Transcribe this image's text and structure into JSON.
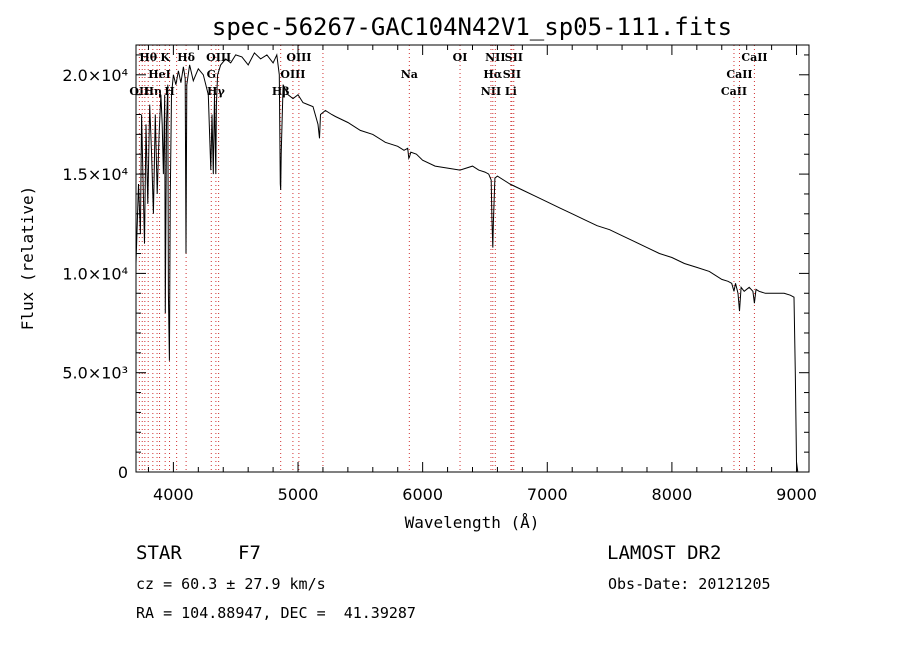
{
  "chart_data": {
    "type": "line",
    "title": "spec-56267-GAC104N42V1_sp05-111.fits",
    "xlabel": "Wavelength (Å)",
    "ylabel": "Flux (relative)",
    "xlim": [
      3700,
      9100
    ],
    "ylim": [
      0,
      21500
    ],
    "xticks": [
      {
        "value": 4000,
        "label": "4000"
      },
      {
        "value": 5000,
        "label": "5000"
      },
      {
        "value": 6000,
        "label": "6000"
      },
      {
        "value": 7000,
        "label": "7000"
      },
      {
        "value": 8000,
        "label": "8000"
      },
      {
        "value": 9000,
        "label": "9000"
      }
    ],
    "yticks": [
      {
        "value": 0,
        "label": "0"
      },
      {
        "value": 5000,
        "label": "5.0×10³"
      },
      {
        "value": 10000,
        "label": "1.0×10⁴"
      },
      {
        "value": 15000,
        "label": "1.5×10⁴"
      },
      {
        "value": 20000,
        "label": "2.0×10⁴"
      }
    ],
    "grid": false,
    "series": [
      {
        "x": [
          3700,
          3720,
          3735,
          3745,
          3755,
          3768,
          3780,
          3795,
          3810,
          3825,
          3840,
          3855,
          3870,
          3885,
          3900,
          3910,
          3920,
          3930,
          3935,
          3945,
          3955,
          3960,
          3968,
          3975,
          3985,
          4000,
          4020,
          4040,
          4060,
          4080,
          4095,
          4101,
          4108,
          4130,
          4160,
          4200,
          4240,
          4280,
          4300,
          4310,
          4320,
          4330,
          4340,
          4345,
          4355,
          4380,
          4420,
          4460,
          4500,
          4550,
          4600,
          4650,
          4700,
          4750,
          4800,
          4830,
          4850,
          4858,
          4861,
          4865,
          4880,
          4920,
          4960,
          5000,
          5040,
          5080,
          5120,
          5160,
          5172,
          5180,
          5220,
          5270,
          5300,
          5400,
          5500,
          5600,
          5700,
          5800,
          5850,
          5880,
          5889,
          5896,
          5905,
          5950,
          6000,
          6100,
          6200,
          6300,
          6400,
          6450,
          6500,
          6530,
          6550,
          6556,
          6563,
          6568,
          6580,
          6600,
          6700,
          6800,
          6900,
          7000,
          7100,
          7200,
          7300,
          7400,
          7500,
          7600,
          7700,
          7800,
          7900,
          8000,
          8100,
          8200,
          8300,
          8400,
          8450,
          8480,
          8498,
          8510,
          8530,
          8542,
          8555,
          8580,
          8620,
          8650,
          8662,
          8675,
          8700,
          8750,
          8800,
          8850,
          8900,
          8950,
          8980,
          8990,
          9000,
          9010
        ],
        "y": [
          10500,
          14500,
          12000,
          18000,
          15000,
          11500,
          17500,
          13500,
          18500,
          16000,
          13000,
          18000,
          14000,
          17000,
          19000,
          17500,
          15000,
          19000,
          8000,
          17500,
          19500,
          9000,
          5600,
          14000,
          19000,
          20000,
          19500,
          20200,
          19600,
          20400,
          19800,
          11000,
          19500,
          20500,
          19700,
          20300,
          20000,
          19000,
          15200,
          18000,
          15000,
          19000,
          15000,
          18500,
          20000,
          20500,
          20800,
          20600,
          21000,
          20900,
          20500,
          21100,
          20800,
          21000,
          20600,
          21000,
          20000,
          14500,
          14200,
          16000,
          19500,
          19000,
          18800,
          19000,
          18600,
          18500,
          18400,
          17500,
          16800,
          18000,
          18200,
          18000,
          17900,
          17600,
          17200,
          17000,
          16600,
          16400,
          16200,
          16300,
          15800,
          15900,
          16100,
          16000,
          15700,
          15400,
          15300,
          15200,
          15400,
          15200,
          15100,
          15000,
          14700,
          12800,
          11300,
          12600,
          14800,
          14900,
          14500,
          14200,
          13900,
          13600,
          13300,
          13000,
          12700,
          12400,
          12200,
          11900,
          11600,
          11300,
          11000,
          10800,
          10500,
          10300,
          10100,
          9700,
          9600,
          9500,
          9100,
          9500,
          9000,
          8100,
          9300,
          9100,
          9300,
          9100,
          8500,
          9200,
          9100,
          9000,
          9000,
          9000,
          9000,
          8900,
          8800,
          5000,
          500,
          0
        ]
      }
    ],
    "line_markers": [
      {
        "x": 3727,
        "label": "OII",
        "row": 2
      },
      {
        "x": 3750,
        "label": "",
        "row": -1
      },
      {
        "x": 3771,
        "label": "",
        "row": -1
      },
      {
        "x": 3798,
        "label": "Hθ",
        "row": 0
      },
      {
        "x": 3835,
        "label": "Hη",
        "row": 2
      },
      {
        "x": 3869,
        "label": "",
        "row": -1
      },
      {
        "x": 3889,
        "label": "HeI",
        "row": 1
      },
      {
        "x": 3934,
        "label": "K",
        "row": 0
      },
      {
        "x": 3969,
        "label": "H",
        "row": 2
      },
      {
        "x": 4026,
        "label": "",
        "row": -1
      },
      {
        "x": 4102,
        "label": "Hδ",
        "row": 0
      },
      {
        "x": 4304,
        "label": "G",
        "row": 1
      },
      {
        "x": 4341,
        "label": "Hγ",
        "row": 2
      },
      {
        "x": 4363,
        "label": "OIII",
        "row": 0
      },
      {
        "x": 4861,
        "label": "Hβ",
        "row": 2
      },
      {
        "x": 4959,
        "label": "OIII",
        "row": 1
      },
      {
        "x": 5007,
        "label": "OIII",
        "row": 0
      },
      {
        "x": 5200,
        "label": "",
        "row": -1
      },
      {
        "x": 5893,
        "label": "Na",
        "row": 1
      },
      {
        "x": 6300,
        "label": "OI",
        "row": 0
      },
      {
        "x": 6548,
        "label": "NII",
        "row": 2
      },
      {
        "x": 6563,
        "label": "Hα",
        "row": 1
      },
      {
        "x": 6583,
        "label": "NII",
        "row": 0
      },
      {
        "x": 6708,
        "label": "Li",
        "row": 2
      },
      {
        "x": 6716,
        "label": "SII",
        "row": 1
      },
      {
        "x": 6731,
        "label": "SII",
        "row": 0
      },
      {
        "x": 8498,
        "label": "CaII",
        "row": 2
      },
      {
        "x": 8542,
        "label": "CaII",
        "row": 1
      },
      {
        "x": 8662,
        "label": "CaII",
        "row": 0
      }
    ]
  },
  "info": {
    "class_label": "STAR",
    "subclass": "F7",
    "survey": "LAMOST DR2",
    "cz_line": "cz = 60.3 ± 27.9 km/s",
    "obs_date_line": "Obs-Date: 20121205",
    "radec_line": "RA = 104.88947, DEC =  41.39287"
  }
}
